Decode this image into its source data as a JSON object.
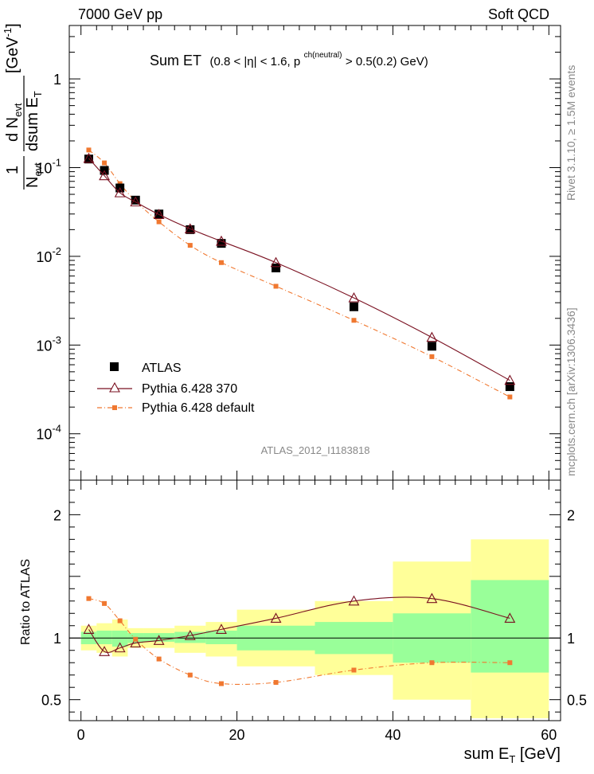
{
  "header": {
    "left": "7000 GeV pp",
    "right": "Soft QCD"
  },
  "side": {
    "top": "Rivet 3.1.10, ≥ 1.5M events",
    "bottom": "mcplots.cern.ch [arXiv:1306.3436]"
  },
  "plot_title": {
    "main": "Sum ET",
    "detail_a": "(0.8 < |η| < 1.6, p",
    "detail_sup": "ch(neutral)",
    "detail_b": " > 0.5(0.2) GeV)"
  },
  "analysis_label": "ATLAS_2012_I1183818",
  "y_label_top": {
    "one": "1",
    "nevt_a": "N",
    "nevt_sub": "evt",
    "num": "d N",
    "num_sub": "evt",
    "den": "dsum E",
    "den_sub": "T",
    "unit": "[GeV",
    "unit_sup": "-1",
    "unit_end": "]"
  },
  "y_label_ratio": "Ratio to ATLAS",
  "x_label": {
    "text": "sum E",
    "sub": "T",
    "unit": " [GeV]"
  },
  "legend": [
    {
      "name": "ATLAS",
      "color": "#000000",
      "marker": "square"
    },
    {
      "name": "Pythia 6.428 370",
      "color": "#7a1020",
      "marker": "open-triangle"
    },
    {
      "name": "Pythia 6.428 default",
      "color": "#f07830",
      "marker": "small-square"
    }
  ],
  "chart_data": [
    {
      "type": "scatter",
      "scale": "log",
      "xlim": [
        -1.5,
        61.5
      ],
      "ylim": [
        3e-05,
        4
      ],
      "x_ticks": [
        0,
        20,
        40,
        60
      ],
      "y_tick_labels": [
        {
          "value": 0.0001,
          "base": "10",
          "exp": "-4"
        },
        {
          "value": 0.001,
          "base": "10",
          "exp": "-3"
        },
        {
          "value": 0.01,
          "base": "10",
          "exp": "-2"
        },
        {
          "value": 0.1,
          "base": "10",
          "exp": "-1"
        },
        {
          "value": 1,
          "base": "1",
          "exp": ""
        }
      ],
      "x": [
        1,
        3,
        5,
        7,
        10,
        14,
        18,
        25,
        35,
        45,
        55
      ],
      "series": [
        {
          "name": "ATLAS",
          "values": [
            0.125,
            0.093,
            0.059,
            0.043,
            0.03,
            0.02,
            0.014,
            0.0074,
            0.0027,
            0.00097,
            0.00034
          ]
        },
        {
          "name": "Pythia 6.428 370",
          "values": [
            0.127,
            0.081,
            0.052,
            0.041,
            0.0296,
            0.0204,
            0.0148,
            0.0085,
            0.0034,
            0.00122,
            0.0004
          ]
        },
        {
          "name": "Pythia 6.428 default",
          "values": [
            0.158,
            0.113,
            0.066,
            0.042,
            0.0245,
            0.0133,
            0.0085,
            0.0046,
            0.0019,
            0.00074,
            0.00026
          ]
        }
      ]
    },
    {
      "type": "scatter",
      "ylabel": "Ratio to ATLAS",
      "xlim": [
        -1.5,
        61.5
      ],
      "ylim": [
        0.33,
        2.28
      ],
      "x_ticks": [
        0,
        20,
        40,
        60
      ],
      "y_ticks": [
        0.5,
        1,
        2
      ],
      "x": [
        1,
        3,
        5,
        7,
        10,
        14,
        18,
        25,
        35,
        45,
        55
      ],
      "bins": [
        [
          0,
          2
        ],
        [
          2,
          4
        ],
        [
          4,
          6
        ],
        [
          6,
          8
        ],
        [
          8,
          12
        ],
        [
          12,
          16
        ],
        [
          16,
          20
        ],
        [
          20,
          30
        ],
        [
          30,
          40
        ],
        [
          40,
          50
        ],
        [
          50,
          60
        ]
      ],
      "band_inner": [
        [
          0.95,
          1.05
        ],
        [
          0.95,
          1.06
        ],
        [
          0.93,
          1.06
        ],
        [
          0.96,
          1.04
        ],
        [
          0.97,
          1.04
        ],
        [
          0.96,
          1.05
        ],
        [
          0.95,
          1.06
        ],
        [
          0.9,
          1.1
        ],
        [
          0.87,
          1.13
        ],
        [
          0.8,
          1.2
        ],
        [
          0.72,
          1.47
        ]
      ],
      "band_outer": [
        [
          0.9,
          1.1
        ],
        [
          0.88,
          1.12
        ],
        [
          0.85,
          1.15
        ],
        [
          0.92,
          1.08
        ],
        [
          0.92,
          1.08
        ],
        [
          0.88,
          1.1
        ],
        [
          0.85,
          1.13
        ],
        [
          0.77,
          1.23
        ],
        [
          0.7,
          1.3
        ],
        [
          0.5,
          1.62
        ],
        [
          0.35,
          1.8
        ]
      ],
      "series": [
        {
          "name": "Pythia 6.428 370",
          "values": [
            1.07,
            0.89,
            0.92,
            0.96,
            0.98,
            1.02,
            1.07,
            1.16,
            1.3,
            1.32,
            1.16
          ]
        },
        {
          "name": "Pythia 6.428 default",
          "values": [
            1.32,
            1.28,
            1.14,
            0.99,
            0.83,
            0.7,
            0.63,
            0.64,
            0.74,
            0.8,
            0.8
          ]
        }
      ]
    }
  ]
}
